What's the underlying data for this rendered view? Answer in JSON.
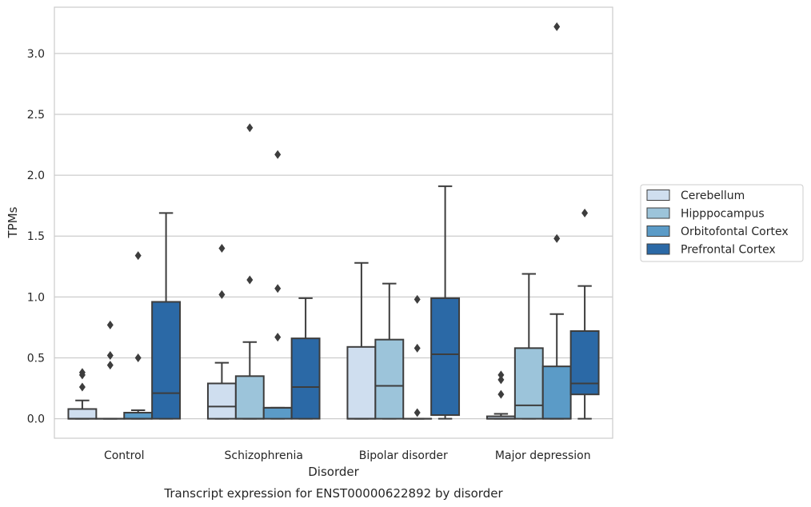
{
  "chart_data": {
    "type": "box",
    "title": "Transcript expression for ENST00000622892 by disorder",
    "xlabel": "Disorder",
    "ylabel": "TPMs",
    "ylim": [
      -0.16,
      3.38
    ],
    "yticks": [
      "0.0",
      "0.5",
      "1.0",
      "1.5",
      "2.0",
      "2.5",
      "3.0"
    ],
    "grid": true,
    "legend_position": "right",
    "categories": [
      "Control",
      "Schizophrenia",
      "Bipolar disorder",
      "Major depression"
    ],
    "series": [
      {
        "name": "Cerebellum",
        "color": "#cfdeef",
        "boxes": [
          {
            "min": 0.0,
            "q1": 0.0,
            "median": 0.0,
            "q3": 0.08,
            "max": 0.15,
            "outliers": [
              0.26,
              0.36,
              0.38
            ]
          },
          {
            "min": 0.0,
            "q1": 0.0,
            "median": 0.1,
            "q3": 0.29,
            "max": 0.46,
            "outliers": [
              1.02,
              1.4
            ]
          },
          {
            "min": 0.0,
            "q1": 0.0,
            "median": 0.0,
            "q3": 0.59,
            "max": 1.28,
            "outliers": []
          },
          {
            "min": 0.0,
            "q1": 0.0,
            "median": 0.0,
            "q3": 0.02,
            "max": 0.04,
            "outliers": [
              0.2,
              0.32,
              0.36
            ]
          }
        ]
      },
      {
        "name": "Hipppocampus",
        "color": "#9cc4da",
        "boxes": [
          {
            "min": 0.0,
            "q1": 0.0,
            "median": 0.0,
            "q3": 0.0,
            "max": 0.0,
            "outliers": [
              0.44,
              0.52,
              0.77
            ]
          },
          {
            "min": 0.0,
            "q1": 0.0,
            "median": 0.0,
            "q3": 0.35,
            "max": 0.63,
            "outliers": [
              1.14,
              2.39
            ]
          },
          {
            "min": 0.0,
            "q1": 0.0,
            "median": 0.27,
            "q3": 0.65,
            "max": 1.11,
            "outliers": []
          },
          {
            "min": 0.0,
            "q1": 0.0,
            "median": 0.11,
            "q3": 0.58,
            "max": 1.19,
            "outliers": []
          }
        ]
      },
      {
        "name": "Orbitofontal Cortex",
        "color": "#5b9bc7",
        "boxes": [
          {
            "min": 0.0,
            "q1": 0.0,
            "median": 0.0,
            "q3": 0.05,
            "max": 0.07,
            "outliers": [
              0.5,
              1.34
            ]
          },
          {
            "min": 0.0,
            "q1": 0.0,
            "median": 0.09,
            "q3": 0.09,
            "max": 0.09,
            "outliers": [
              0.67,
              1.07,
              2.17
            ]
          },
          {
            "min": 0.0,
            "q1": 0.0,
            "median": 0.0,
            "q3": 0.0,
            "max": 0.0,
            "outliers": [
              0.05,
              0.58,
              0.98
            ]
          },
          {
            "min": 0.0,
            "q1": 0.0,
            "median": 0.0,
            "q3": 0.43,
            "max": 0.86,
            "outliers": [
              1.48,
              3.22
            ]
          }
        ]
      },
      {
        "name": "Prefrontal Cortex",
        "color": "#2b69a6",
        "boxes": [
          {
            "min": 0.0,
            "q1": 0.0,
            "median": 0.21,
            "q3": 0.96,
            "max": 1.69,
            "outliers": []
          },
          {
            "min": 0.0,
            "q1": 0.0,
            "median": 0.26,
            "q3": 0.66,
            "max": 0.99,
            "outliers": []
          },
          {
            "min": 0.0,
            "q1": 0.03,
            "median": 0.53,
            "q3": 0.99,
            "max": 1.91,
            "outliers": []
          },
          {
            "min": 0.0,
            "q1": 0.2,
            "median": 0.29,
            "q3": 0.72,
            "max": 1.09,
            "outliers": [
              1.69
            ]
          }
        ]
      }
    ]
  }
}
